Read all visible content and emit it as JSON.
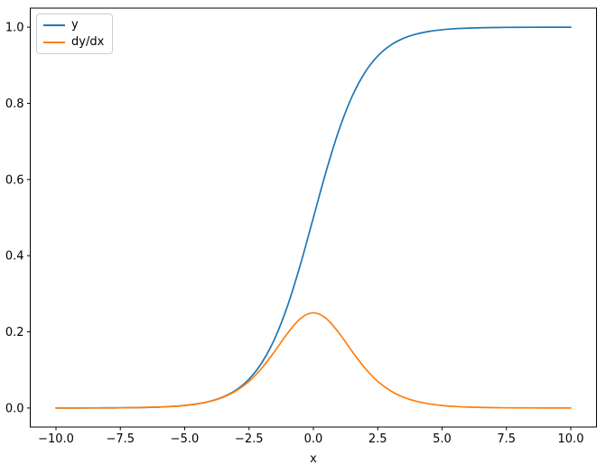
{
  "chart_data": {
    "type": "line",
    "title": "",
    "xlabel": "x",
    "ylabel": "",
    "grid": false,
    "background": "#ffffff",
    "frame_color": "#000000",
    "xlim": [
      -10,
      10
    ],
    "ylim": [
      0,
      1
    ],
    "xticks": [
      -10.0,
      -7.5,
      -5.0,
      -2.5,
      0.0,
      2.5,
      5.0,
      7.5,
      10.0
    ],
    "xtick_labels": [
      "−10.0",
      "−7.5",
      "−5.0",
      "−2.5",
      "0.0",
      "2.5",
      "5.0",
      "7.5",
      "10.0"
    ],
    "yticks": [
      0.0,
      0.2,
      0.4,
      0.6,
      0.8,
      1.0
    ],
    "ytick_labels": [
      "0.0",
      "0.2",
      "0.4",
      "0.6",
      "0.8",
      "1.0"
    ],
    "legend": {
      "position": "upper left"
    },
    "x": [
      -10,
      -9.5,
      -9,
      -8.5,
      -8,
      -7.5,
      -7,
      -6.5,
      -6,
      -5.5,
      -5,
      -4.5,
      -4,
      -3.5,
      -3,
      -2.5,
      -2,
      -1.5,
      -1,
      -0.5,
      0,
      0.5,
      1,
      1.5,
      2,
      2.5,
      3,
      3.5,
      4,
      4.5,
      5,
      5.5,
      6,
      6.5,
      7,
      7.5,
      8,
      8.5,
      9,
      9.5,
      10
    ],
    "series": [
      {
        "name": "y",
        "color": "#1f77b4",
        "values": [
          4.5e-05,
          7.5e-05,
          0.000123,
          0.000203,
          0.000335,
          0.000553,
          0.000911,
          0.001501,
          0.002473,
          0.00407,
          0.006693,
          0.010987,
          0.017986,
          0.029312,
          0.047426,
          0.075858,
          0.119203,
          0.182426,
          0.268941,
          0.377541,
          0.5,
          0.622459,
          0.731059,
          0.817574,
          0.880797,
          0.924142,
          0.952574,
          0.970688,
          0.982014,
          0.989013,
          0.993307,
          0.99593,
          0.997527,
          0.998499,
          0.999089,
          0.999447,
          0.999665,
          0.999797,
          0.999877,
          0.999925,
          0.999955
        ]
      },
      {
        "name": "dy/dx",
        "color": "#ff7f0e",
        "values": [
          4.5e-05,
          7.5e-05,
          0.000123,
          0.000203,
          0.000335,
          0.000552,
          0.00091,
          0.001499,
          0.002467,
          0.004053,
          0.006648,
          0.010866,
          0.017663,
          0.028453,
          0.045177,
          0.070104,
          0.104994,
          0.149146,
          0.196612,
          0.235004,
          0.25,
          0.235004,
          0.196612,
          0.149146,
          0.104994,
          0.070104,
          0.045177,
          0.028453,
          0.017663,
          0.010866,
          0.006648,
          0.004053,
          0.002467,
          0.001499,
          0.00091,
          0.000552,
          0.000335,
          0.000203,
          0.000123,
          7.5e-05,
          4.5e-05
        ]
      }
    ]
  }
}
